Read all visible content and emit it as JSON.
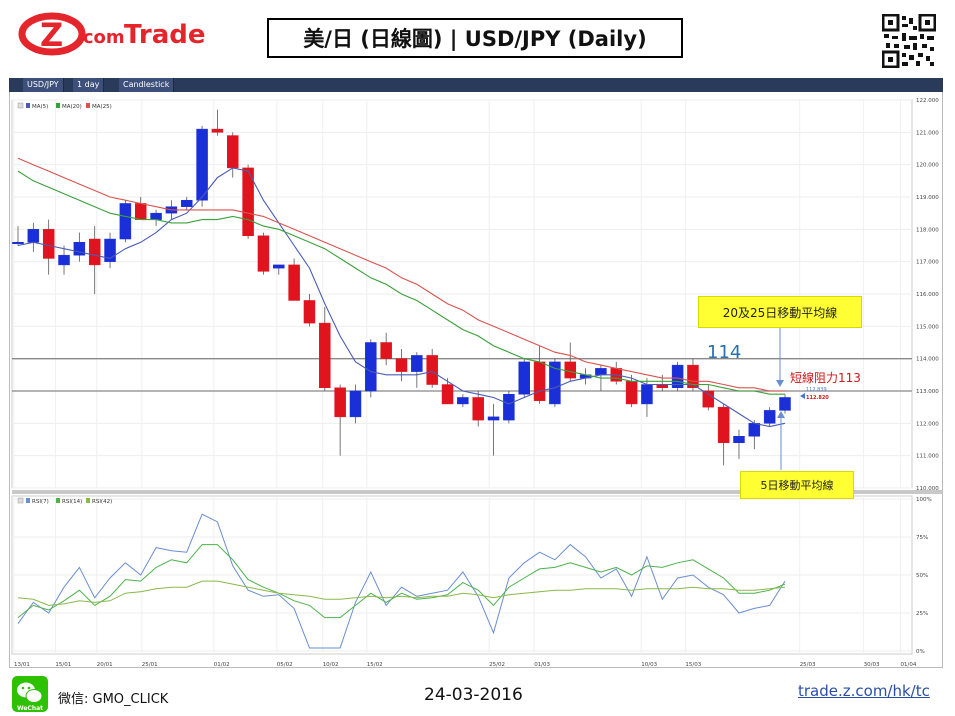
{
  "brand": {
    "name_z": "Z",
    "name_com": ".com",
    "name_trade": "Trade",
    "color": "#e4252c"
  },
  "title": "美/日 (日線圖) | USD/JPY  (Daily)",
  "toolbar": {
    "symbol": "USD/JPY",
    "interval": "1 day",
    "style": "Candlestick"
  },
  "legend_main": [
    "MA(5)",
    "MA(20)",
    "MA(25)"
  ],
  "legend_rsi": [
    "RSI(7)",
    "RSI(14)",
    "RSI(42)"
  ],
  "annotations": {
    "ma_20_25": "20及25日移動平均線",
    "ma_5": "5日移動平均線",
    "level_114": "114",
    "resistance": "短線阻力113",
    "price_label_blue": "112.839",
    "price_label_red": "112.820"
  },
  "footer": {
    "wechat_label": "微信: GMO_CLICK",
    "wechat_badge": "WeChat",
    "date": "24-03-2016",
    "link": "trade.z.com/hk/tc"
  },
  "chart_data": {
    "type": "candlestick",
    "title": "USD/JPY Daily",
    "ylim": [
      110,
      122
    ],
    "yticks": [
      "122.000",
      "121.000",
      "120.000",
      "119.000",
      "118.000",
      "117.000",
      "116.000",
      "115.000",
      "114.000",
      "113.000",
      "112.000",
      "111.000",
      "110.000"
    ],
    "xticks": [
      "13/01",
      "15/01",
      "20/01",
      "25/01",
      "01/02",
      "05/02",
      "10/02",
      "15/02",
      "25/02",
      "01/03",
      "10/03",
      "15/03",
      "25/03",
      "30/03",
      "01/04"
    ],
    "horizontal_lines": [
      114.0,
      113.0
    ],
    "candles": [
      {
        "o": 117.6,
        "h": 118.1,
        "l": 117.5,
        "c": 117.6
      },
      {
        "o": 117.6,
        "h": 118.2,
        "l": 117.3,
        "c": 118.0
      },
      {
        "o": 118.0,
        "h": 118.3,
        "l": 116.6,
        "c": 117.1
      },
      {
        "o": 116.9,
        "h": 117.5,
        "l": 116.6,
        "c": 117.2
      },
      {
        "o": 117.2,
        "h": 117.9,
        "l": 117.0,
        "c": 117.6
      },
      {
        "o": 117.7,
        "h": 118.1,
        "l": 116.0,
        "c": 116.9
      },
      {
        "o": 117.0,
        "h": 117.9,
        "l": 116.8,
        "c": 117.7
      },
      {
        "o": 117.7,
        "h": 118.9,
        "l": 117.6,
        "c": 118.8
      },
      {
        "o": 118.8,
        "h": 119.0,
        "l": 118.3,
        "c": 118.3
      },
      {
        "o": 118.3,
        "h": 118.6,
        "l": 118.1,
        "c": 118.5
      },
      {
        "o": 118.5,
        "h": 118.9,
        "l": 118.3,
        "c": 118.7
      },
      {
        "o": 118.7,
        "h": 119.0,
        "l": 118.6,
        "c": 118.9
      },
      {
        "o": 118.9,
        "h": 121.2,
        "l": 118.7,
        "c": 121.1
      },
      {
        "o": 121.1,
        "h": 121.7,
        "l": 120.9,
        "c": 121.0
      },
      {
        "o": 120.9,
        "h": 121.0,
        "l": 119.6,
        "c": 119.9
      },
      {
        "o": 119.9,
        "h": 120.0,
        "l": 117.7,
        "c": 117.8
      },
      {
        "o": 117.8,
        "h": 117.9,
        "l": 116.6,
        "c": 116.7
      },
      {
        "o": 116.8,
        "h": 116.9,
        "l": 116.6,
        "c": 116.9
      },
      {
        "o": 116.9,
        "h": 117.1,
        "l": 115.8,
        "c": 115.8
      },
      {
        "o": 115.8,
        "h": 116.0,
        "l": 115.0,
        "c": 115.1
      },
      {
        "o": 115.1,
        "h": 115.6,
        "l": 113.0,
        "c": 113.1
      },
      {
        "o": 113.1,
        "h": 113.2,
        "l": 111.0,
        "c": 112.2
      },
      {
        "o": 112.2,
        "h": 113.2,
        "l": 112.0,
        "c": 113.0
      },
      {
        "o": 113.0,
        "h": 114.6,
        "l": 112.8,
        "c": 114.5
      },
      {
        "o": 114.5,
        "h": 114.8,
        "l": 113.8,
        "c": 114.0
      },
      {
        "o": 114.0,
        "h": 114.3,
        "l": 113.3,
        "c": 113.6
      },
      {
        "o": 113.6,
        "h": 114.2,
        "l": 113.1,
        "c": 114.1
      },
      {
        "o": 114.1,
        "h": 114.3,
        "l": 113.1,
        "c": 113.2
      },
      {
        "o": 113.2,
        "h": 113.4,
        "l": 112.6,
        "c": 112.6
      },
      {
        "o": 112.6,
        "h": 112.9,
        "l": 112.5,
        "c": 112.8
      },
      {
        "o": 112.8,
        "h": 113.0,
        "l": 111.9,
        "c": 112.1
      },
      {
        "o": 112.1,
        "h": 112.6,
        "l": 111.0,
        "c": 112.2
      },
      {
        "o": 112.1,
        "h": 113.0,
        "l": 112.0,
        "c": 112.9
      },
      {
        "o": 112.9,
        "h": 114.0,
        "l": 112.8,
        "c": 113.9
      },
      {
        "o": 113.9,
        "h": 114.4,
        "l": 112.6,
        "c": 112.7
      },
      {
        "o": 112.6,
        "h": 114.0,
        "l": 112.5,
        "c": 113.9
      },
      {
        "o": 113.9,
        "h": 114.5,
        "l": 113.3,
        "c": 113.4
      },
      {
        "o": 113.4,
        "h": 113.7,
        "l": 113.2,
        "c": 113.5
      },
      {
        "o": 113.5,
        "h": 113.8,
        "l": 113.0,
        "c": 113.7
      },
      {
        "o": 113.7,
        "h": 113.9,
        "l": 113.2,
        "c": 113.3
      },
      {
        "o": 113.3,
        "h": 113.5,
        "l": 112.5,
        "c": 112.6
      },
      {
        "o": 112.6,
        "h": 113.4,
        "l": 112.2,
        "c": 113.2
      },
      {
        "o": 113.2,
        "h": 113.5,
        "l": 113.0,
        "c": 113.1
      },
      {
        "o": 113.1,
        "h": 113.9,
        "l": 113.0,
        "c": 113.8
      },
      {
        "o": 113.8,
        "h": 114.0,
        "l": 113.0,
        "c": 113.1
      },
      {
        "o": 113.0,
        "h": 113.2,
        "l": 112.4,
        "c": 112.5
      },
      {
        "o": 112.5,
        "h": 112.6,
        "l": 110.7,
        "c": 111.4
      },
      {
        "o": 111.4,
        "h": 111.8,
        "l": 110.9,
        "c": 111.6
      },
      {
        "o": 111.6,
        "h": 112.1,
        "l": 111.2,
        "c": 112.0
      },
      {
        "o": 112.0,
        "h": 112.5,
        "l": 111.9,
        "c": 112.4
      },
      {
        "o": 112.4,
        "h": 112.9,
        "l": 112.3,
        "c": 112.8
      }
    ],
    "series": [
      {
        "name": "MA(5)",
        "color": "#4a5bb5",
        "values": [
          117.5,
          117.6,
          117.5,
          117.4,
          117.3,
          117.2,
          117.1,
          117.4,
          117.6,
          117.9,
          118.3,
          118.5,
          119.0,
          119.6,
          119.9,
          119.8,
          118.9,
          118.2,
          117.5,
          116.8,
          115.7,
          114.7,
          113.9,
          113.6,
          113.5,
          113.5,
          113.5,
          113.6,
          113.3,
          113.0,
          112.9,
          112.8,
          112.6,
          112.8,
          113.0,
          113.1,
          113.3,
          113.4,
          113.5,
          113.5,
          113.4,
          113.2,
          113.2,
          113.2,
          113.2,
          112.9,
          112.6,
          112.3,
          112.0,
          111.9,
          112.0
        ]
      },
      {
        "name": "MA(20)",
        "color": "#3aa03a",
        "values": [
          119.8,
          119.5,
          119.3,
          119.1,
          118.9,
          118.7,
          118.5,
          118.4,
          118.3,
          118.3,
          118.2,
          118.2,
          118.3,
          118.3,
          118.4,
          118.3,
          118.1,
          118.0,
          117.8,
          117.6,
          117.4,
          117.1,
          116.8,
          116.5,
          116.3,
          116.0,
          115.8,
          115.5,
          115.2,
          114.9,
          114.7,
          114.4,
          114.2,
          114.0,
          113.9,
          113.7,
          113.6,
          113.5,
          113.4,
          113.4,
          113.3,
          113.3,
          113.3,
          113.3,
          113.2,
          113.2,
          113.1,
          113.0,
          113.0,
          112.9,
          112.9
        ]
      },
      {
        "name": "MA(25)",
        "color": "#d9534f",
        "values": [
          120.2,
          120.0,
          119.8,
          119.6,
          119.4,
          119.2,
          119.0,
          118.9,
          118.8,
          118.7,
          118.6,
          118.6,
          118.6,
          118.6,
          118.6,
          118.5,
          118.4,
          118.2,
          118.0,
          117.8,
          117.6,
          117.4,
          117.2,
          117.0,
          116.8,
          116.5,
          116.3,
          116.0,
          115.7,
          115.5,
          115.2,
          115.0,
          114.8,
          114.6,
          114.4,
          114.2,
          114.1,
          113.9,
          113.8,
          113.7,
          113.6,
          113.5,
          113.4,
          113.4,
          113.3,
          113.3,
          113.2,
          113.1,
          113.1,
          113.0,
          113.0
        ]
      }
    ],
    "rsi": {
      "ylim": [
        0,
        100
      ],
      "yticks": [
        "100%",
        "75%",
        "50%",
        "25%",
        "0%"
      ],
      "series": [
        {
          "name": "RSI(7)",
          "color": "#6a8ed0",
          "values": [
            18,
            32,
            25,
            42,
            55,
            35,
            48,
            58,
            50,
            68,
            66,
            65,
            90,
            85,
            56,
            40,
            36,
            37,
            28,
            2,
            2,
            2,
            32,
            52,
            30,
            42,
            36,
            38,
            40,
            52,
            36,
            12,
            48,
            58,
            65,
            60,
            70,
            62,
            48,
            54,
            36,
            62,
            34,
            48,
            50,
            42,
            37,
            25,
            28,
            30,
            46
          ]
        },
        {
          "name": "RSI(14)",
          "color": "#4cb24c",
          "values": [
            22,
            30,
            27,
            33,
            40,
            30,
            36,
            47,
            46,
            55,
            60,
            58,
            70,
            70,
            60,
            47,
            42,
            38,
            33,
            30,
            22,
            22,
            30,
            38,
            32,
            38,
            34,
            35,
            37,
            45,
            40,
            30,
            42,
            48,
            54,
            55,
            58,
            55,
            52,
            55,
            50,
            56,
            55,
            58,
            60,
            54,
            48,
            38,
            38,
            40,
            44
          ]
        },
        {
          "name": "RSI(42)",
          "color": "#8ab84a",
          "values": [
            35,
            34,
            30,
            31,
            33,
            32,
            33,
            38,
            39,
            41,
            42,
            42,
            46,
            46,
            44,
            42,
            40,
            38,
            37,
            36,
            34,
            34,
            35,
            36,
            35,
            36,
            35,
            36,
            36,
            38,
            37,
            35,
            37,
            38,
            39,
            40,
            40,
            41,
            41,
            41,
            40,
            41,
            41,
            41,
            42,
            41,
            41,
            40,
            40,
            41,
            42
          ]
        }
      ]
    }
  }
}
